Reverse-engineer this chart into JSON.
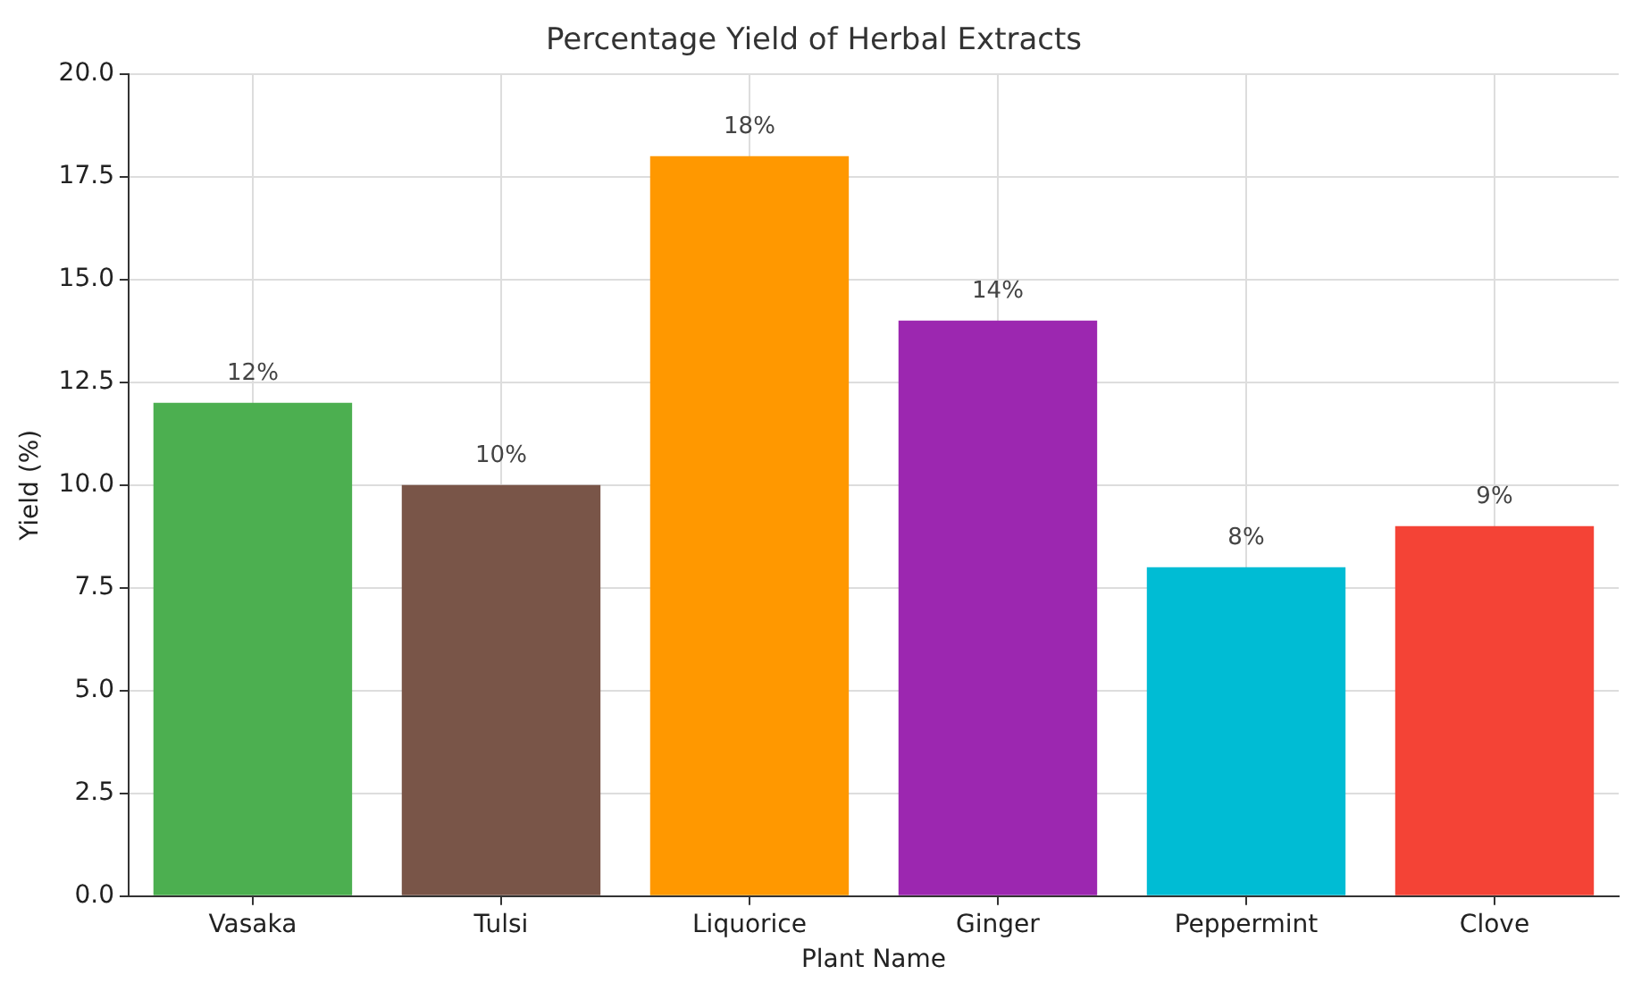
{
  "chart_data": {
    "type": "bar",
    "title": "Percentage Yield of Herbal Extracts",
    "xlabel": "Plant Name",
    "ylabel": "Yield (%)",
    "categories": [
      "Vasaka",
      "Tulsi",
      "Liquorice",
      "Ginger",
      "Peppermint",
      "Clove"
    ],
    "values": [
      12,
      10,
      18,
      14,
      8,
      9
    ],
    "colors": [
      "#4caf50",
      "#795548",
      "#ff9800",
      "#9c27b0",
      "#00bcd4",
      "#f44336"
    ],
    "value_labels": [
      "12%",
      "10%",
      "18%",
      "14%",
      "8%",
      "9%"
    ],
    "ylim": [
      0,
      20
    ],
    "yticks": [
      {
        "value": 0,
        "label": "0.0"
      },
      {
        "value": 2.5,
        "label": "2.5"
      },
      {
        "value": 5,
        "label": "5.0"
      },
      {
        "value": 7.5,
        "label": "7.5"
      },
      {
        "value": 10,
        "label": "10.0"
      },
      {
        "value": 12.5,
        "label": "12.5"
      },
      {
        "value": 15,
        "label": "15.0"
      },
      {
        "value": 17.5,
        "label": "17.5"
      },
      {
        "value": 20,
        "label": "20.0"
      }
    ],
    "grid": true,
    "legend": false
  }
}
